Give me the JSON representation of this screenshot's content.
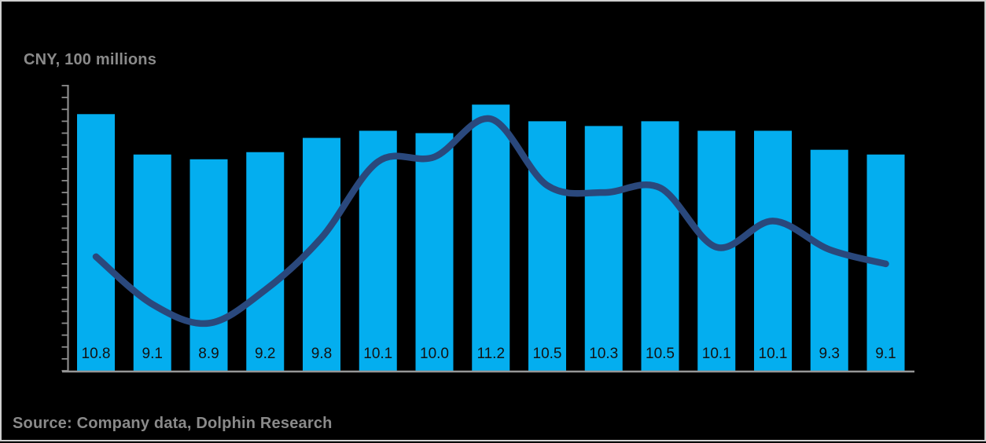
{
  "page": {
    "background_color": "#000000",
    "border_color": "#CFCFCF"
  },
  "header": {
    "title": "CNY, 100 millions"
  },
  "footer": {
    "source": "Source: Company data, Dolphin Research"
  },
  "colors": {
    "bar_fill": "#04AEEF",
    "line_stroke": "#2A487C",
    "axis_stroke": "#8C8C8C",
    "bar_label_text": "#121212",
    "title_text": "#8A8A8A"
  },
  "chart_data": {
    "type": "bar",
    "subtype": "bar+line-combo",
    "title": "CNY, 100 millions",
    "xlabel": "",
    "ylabel": "",
    "x_tick_labels": [],
    "y_tick_labels_visible": false,
    "ylim": [
      0,
      12
    ],
    "y_minor_tick_step": 0.5,
    "grid": false,
    "legend": "none",
    "annotations": "bar values printed inside bottom of each bar",
    "categories": [
      "",
      "",
      "",
      "",
      "",
      "",
      "",
      "",
      "",
      "",
      "",
      "",
      "",
      "",
      ""
    ],
    "series": [
      {
        "name": "bar-series",
        "type": "bar",
        "color": "#04AEEF",
        "values": [
          10.8,
          9.1,
          8.9,
          9.2,
          9.8,
          10.1,
          10.0,
          11.2,
          10.5,
          10.3,
          10.5,
          10.1,
          10.1,
          9.3,
          9.1
        ],
        "labels": [
          "10.8",
          "9.1",
          "8.9",
          "9.2",
          "9.8",
          "10.1",
          "10.0",
          "11.2",
          "10.5",
          "10.3",
          "10.5",
          "10.1",
          "10.1",
          "9.3",
          "9.1"
        ]
      },
      {
        "name": "trend-line-series",
        "type": "line",
        "color": "#2A487C",
        "smooth": true,
        "values": [
          4.8,
          2.8,
          2.0,
          3.4,
          5.6,
          8.8,
          9.0,
          10.6,
          7.8,
          7.5,
          7.7,
          5.2,
          6.3,
          5.1,
          4.5
        ]
      }
    ]
  }
}
